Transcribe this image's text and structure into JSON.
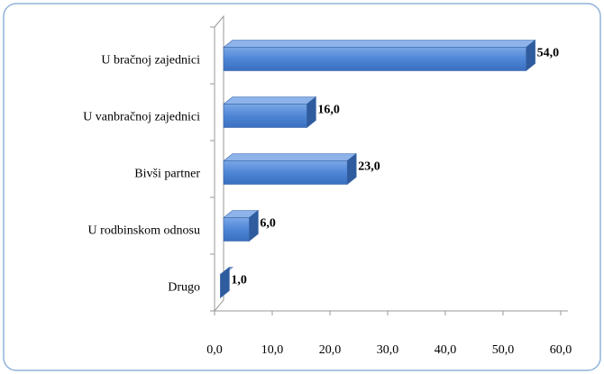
{
  "chart_data": {
    "type": "bar",
    "orientation": "horizontal",
    "categories": [
      "U bračnoj zajednici",
      "U vanbračnoj zajednici",
      "Bivši partner",
      "U rodbinskom odnosu",
      "Drugo"
    ],
    "values": [
      54,
      16,
      23,
      6,
      1
    ],
    "value_labels": [
      "54,0",
      "16,0",
      "23,0",
      "6,0",
      "1,0"
    ],
    "color": "#4f86d6",
    "xlim": [
      0,
      60
    ],
    "xticks": [
      {
        "value": 0,
        "label": "0,0"
      },
      {
        "value": 10,
        "label": "10,0"
      },
      {
        "value": 20,
        "label": "20,0"
      },
      {
        "value": 30,
        "label": "30,0"
      },
      {
        "value": 40,
        "label": "40,0"
      },
      {
        "value": 50,
        "label": "50,0"
      },
      {
        "value": 60,
        "label": "60,0"
      }
    ],
    "grid": false
  }
}
